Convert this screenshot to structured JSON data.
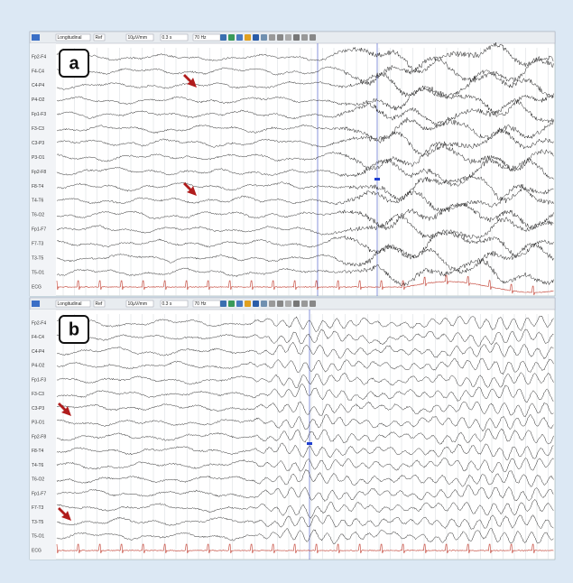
{
  "panels": [
    {
      "label": "a",
      "toolbar": {
        "montage": "Longitudinal",
        "reference": "Ref",
        "sensitivity": "10µV/mm",
        "timebase": "0.3 s",
        "filter": "70 Hz"
      },
      "channels": [
        "Fp2-F4",
        "F4-C4",
        "C4-P4",
        "P4-O2",
        "Fp1-F3",
        "F3-C3",
        "C3-P3",
        "P3-O1",
        "Fp2-F8",
        "F8-T4",
        "T4-T6",
        "T6-O2",
        "Fp1-F7",
        "F7-T3",
        "T3-T5",
        "T5-O1",
        "ECG"
      ]
    },
    {
      "label": "b",
      "toolbar": {
        "montage": "Longitudinal",
        "reference": "Ref",
        "sensitivity": "10µV/mm",
        "timebase": "0.3 s",
        "filter": "70 Hz"
      },
      "channels": [
        "Fp2-F4",
        "F4-C4",
        "C4-P4",
        "P4-O2",
        "Fp1-F3",
        "F3-C3",
        "C3-P3",
        "P3-O1",
        "Fp2-F8",
        "F8-T4",
        "T4-T6",
        "T6-O2",
        "Fp1-F7",
        "F7-T3",
        "T3-T5",
        "T5-O1",
        "ECG"
      ]
    }
  ]
}
